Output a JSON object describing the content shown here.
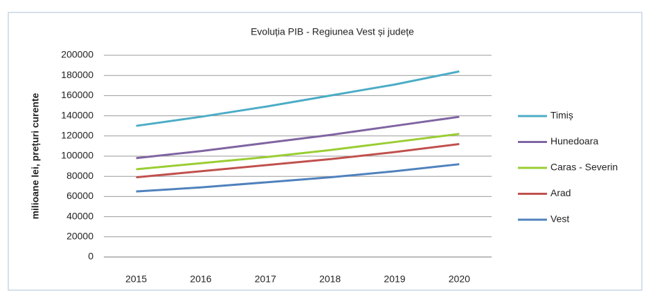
{
  "chart_data": {
    "type": "line",
    "title": "Evoluția PIB - Regiunea Vest și județe",
    "y_label": "milioane lei, prețuri curente",
    "categories": [
      "2015",
      "2016",
      "2017",
      "2018",
      "2019",
      "2020"
    ],
    "series": [
      {
        "name": "Timiș",
        "color": "#4bacc6",
        "values": [
          130000,
          139000,
          149000,
          160000,
          171000,
          184000
        ]
      },
      {
        "name": "Hunedoara",
        "color": "#7f64a2",
        "values": [
          98000,
          105000,
          113000,
          121000,
          130000,
          139000
        ]
      },
      {
        "name": "Caras - Severin",
        "color": "#9acd32",
        "values": [
          87000,
          93000,
          99000,
          106000,
          114000,
          122000
        ]
      },
      {
        "name": "Arad",
        "color": "#c0504d",
        "values": [
          79000,
          85000,
          91000,
          97000,
          104000,
          112000
        ]
      },
      {
        "name": "Vest",
        "color": "#4f81bd",
        "values": [
          65000,
          69000,
          74000,
          79000,
          85000,
          92000
        ]
      }
    ],
    "ylim": [
      0,
      200000
    ],
    "yticks": [
      0,
      20000,
      40000,
      60000,
      80000,
      100000,
      120000,
      140000,
      160000,
      180000,
      200000
    ],
    "grid": true,
    "legend": "right"
  }
}
